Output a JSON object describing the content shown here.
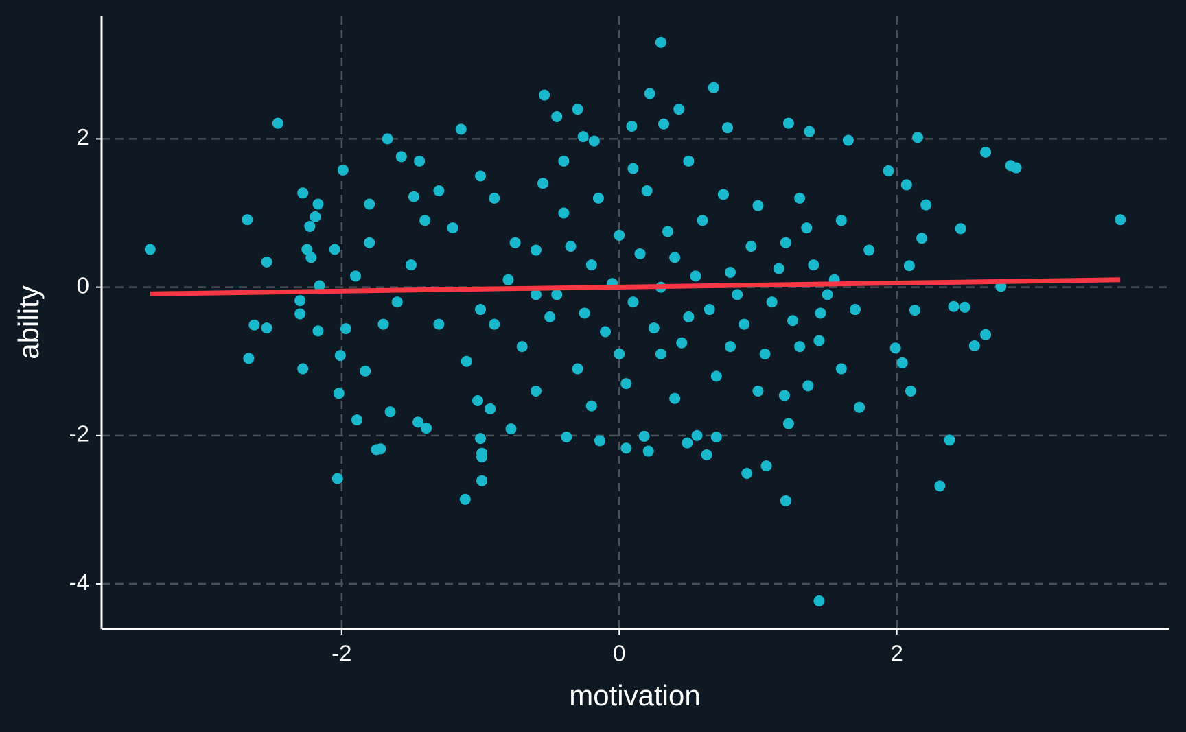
{
  "chart_data": {
    "type": "scatter",
    "x_label": "motivation",
    "y_label": "ability",
    "x": [
      -3.38,
      -2.46,
      -2.68,
      -2.67,
      -2.63,
      -2.54,
      -2.54,
      -2.28,
      -2.28,
      -2.3,
      -2.3,
      -2.17,
      -2.19,
      -2.23,
      -2.25,
      -2.22,
      -2.17,
      -2.16,
      -2.03,
      -2.02,
      -2.01,
      -1.99,
      -1.97,
      -2.05,
      -1.89,
      -1.83,
      -1.8,
      -1.75,
      -1.72,
      -1.67,
      -1.65,
      -1.57,
      -1.44,
      -1.48,
      -1.45,
      -1.39,
      -1.14,
      -1.11,
      -1.0,
      -0.99,
      -0.99,
      -0.99,
      -1.02,
      -0.93,
      -0.78,
      -0.54,
      -0.45,
      -0.3,
      -0.26,
      -0.18,
      0.09,
      0.3,
      0.22,
      0.43,
      0.32,
      0.68,
      0.78,
      -0.38,
      -0.14,
      0.05,
      0.18,
      0.21,
      0.49,
      0.56,
      0.63,
      0.7,
      0.92,
      1.06,
      1.2,
      1.44,
      1.22,
      1.37,
      1.65,
      1.94,
      2.15,
      2.07,
      2.21,
      2.18,
      2.09,
      2.46,
      2.64,
      2.82,
      2.86,
      3.61,
      2.75,
      2.41,
      2.49,
      2.64,
      2.56,
      2.38,
      2.31,
      2.1,
      2.04,
      1.99,
      2.13,
      1.73,
      1.6,
      1.22,
      1.19,
      1.36,
      1.44,
      -1.5,
      -1.3,
      -1.2,
      -1.0,
      -0.9,
      -0.8,
      -0.7,
      -0.6,
      -0.5,
      -0.4,
      -0.3,
      -0.2,
      -0.1,
      0.0,
      0.1,
      0.2,
      0.3,
      0.4,
      0.5,
      0.6,
      0.7,
      0.8,
      0.9,
      1.0,
      1.1,
      1.2,
      1.3,
      1.4,
      1.5,
      1.6,
      1.7,
      1.8,
      -1.6,
      -1.4,
      -1.1,
      -0.9,
      -0.75,
      -0.55,
      -0.45,
      -0.35,
      -0.25,
      -0.15,
      -0.05,
      0.05,
      0.15,
      0.25,
      0.35,
      0.45,
      0.55,
      0.65,
      0.75,
      0.85,
      0.95,
      1.05,
      1.15,
      1.25,
      1.35,
      1.45,
      1.55,
      -1.8,
      -1.7,
      -1.9,
      -0.6,
      0.4,
      -0.2,
      1.0,
      -1.0,
      0.1,
      0.5,
      -0.4,
      1.3,
      -1.3,
      0.0,
      0.3,
      -0.6,
      0.8
    ],
    "values": [
      0.51,
      2.21,
      0.91,
      -0.96,
      -0.51,
      -0.55,
      0.34,
      1.27,
      -1.1,
      -0.18,
      -0.36,
      1.12,
      0.95,
      0.82,
      0.51,
      0.4,
      -0.59,
      0.02,
      -2.58,
      -1.43,
      -0.92,
      1.58,
      -0.56,
      0.51,
      -1.79,
      -1.13,
      1.12,
      -2.19,
      -2.18,
      2.0,
      -1.68,
      1.76,
      1.7,
      1.22,
      -1.82,
      -1.9,
      2.13,
      -2.86,
      -2.04,
      -2.24,
      -2.29,
      -2.61,
      -1.53,
      -1.64,
      -1.91,
      2.59,
      2.3,
      2.4,
      2.03,
      1.97,
      2.17,
      3.3,
      2.61,
      2.4,
      2.2,
      2.69,
      2.15,
      -2.02,
      -2.07,
      -2.17,
      -2.01,
      -2.21,
      -2.1,
      -2.0,
      -2.26,
      -2.02,
      -2.51,
      -2.41,
      -2.88,
      -4.23,
      2.21,
      2.1,
      1.98,
      1.57,
      2.02,
      1.38,
      1.11,
      0.66,
      0.29,
      0.79,
      1.82,
      1.64,
      1.61,
      0.91,
      0.01,
      -0.26,
      -0.27,
      -0.64,
      -0.79,
      -2.06,
      -2.68,
      -1.4,
      -1.02,
      -0.82,
      -0.31,
      -1.62,
      -1.1,
      -1.84,
      -1.46,
      -1.33,
      -0.72,
      0.3,
      -0.5,
      0.8,
      -0.3,
      1.2,
      0.1,
      -0.8,
      0.5,
      -0.4,
      1.0,
      -1.1,
      0.3,
      -0.6,
      0.7,
      -0.2,
      1.3,
      -0.9,
      0.4,
      -0.4,
      0.9,
      -1.2,
      0.2,
      -0.5,
      1.1,
      -0.2,
      0.6,
      -0.8,
      0.3,
      -0.1,
      0.9,
      -0.3,
      0.5,
      -0.2,
      0.9,
      -1.0,
      -0.5,
      0.6,
      1.4,
      -0.1,
      0.55,
      -0.35,
      1.2,
      0.05,
      -1.3,
      0.45,
      -0.55,
      0.75,
      -0.75,
      0.15,
      -0.3,
      1.25,
      -0.1,
      0.55,
      -0.9,
      0.25,
      -0.45,
      0.8,
      -0.35,
      0.1,
      0.6,
      -0.5,
      0.15,
      -1.4,
      -1.5,
      -1.6,
      -1.4,
      1.5,
      1.6,
      1.7,
      1.7,
      1.2,
      1.3,
      -0.9,
      0.0,
      -0.1,
      -0.8
    ],
    "color": "#1ab8cd",
    "fit": {
      "x": [
        -3.38,
        3.61
      ],
      "values": [
        -0.09,
        0.1
      ],
      "color": "#f83745"
    },
    "xlim": [
      -3.73,
      3.96
    ],
    "ylim": [
      -4.61,
      3.65
    ],
    "xticks": [
      -2,
      0,
      2
    ],
    "yticks": [
      -4,
      -2,
      0,
      2
    ],
    "grid": true
  }
}
